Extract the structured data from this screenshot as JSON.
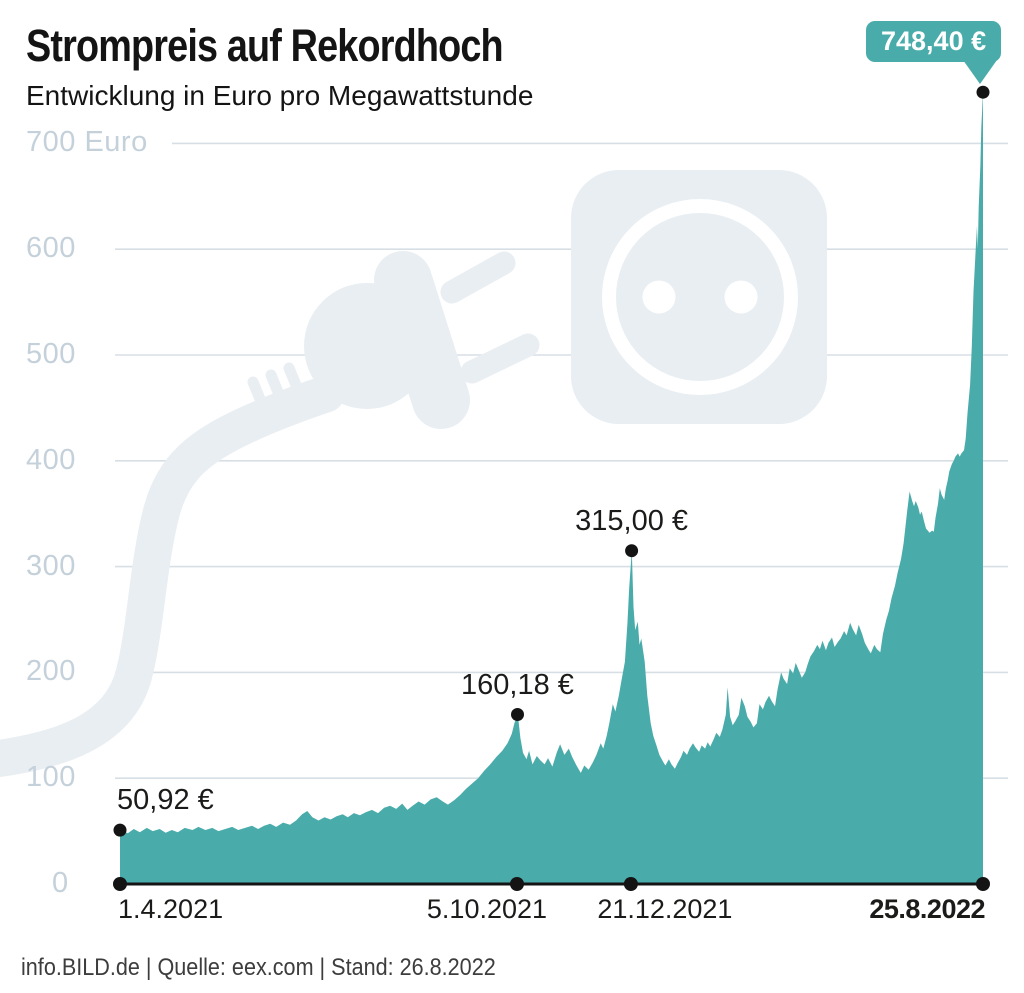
{
  "header": {
    "title": "Strompreis auf Rekordhoch",
    "subtitle": "Entwicklung in Euro pro Megawattstunde"
  },
  "footer": {
    "text": "info.BILD.de | Quelle: eex.com | Stand: 26.8.2022"
  },
  "colors": {
    "accent_teal": "#4aacaa",
    "grid": "#d7dfe5",
    "axis_label": "#c5d1da",
    "text_dark": "#1b1b19",
    "decoration": "#e9eef2",
    "badge_text": "#ffffff"
  },
  "icons": [
    "power-plug-icon",
    "power-socket-icon",
    "power-cable-icon"
  ],
  "chart_data": {
    "type": "area",
    "title": "Strompreis auf Rekordhoch",
    "subtitle": "Entwicklung in Euro pro Megawattstunde",
    "unit": "Euro pro Megawattstunde",
    "ylim": [
      0,
      760
    ],
    "grid": true,
    "y_ticks": [
      {
        "value": 700,
        "label": "700 Euro"
      },
      {
        "value": 600,
        "label": "600"
      },
      {
        "value": 500,
        "label": "500"
      },
      {
        "value": 400,
        "label": "400"
      },
      {
        "value": 300,
        "label": "300"
      },
      {
        "value": 200,
        "label": "200"
      },
      {
        "value": 100,
        "label": "100"
      },
      {
        "value": 0,
        "label": "0"
      }
    ],
    "x_ticks": [
      {
        "t": 0,
        "label": "1.4.2021",
        "bold": false
      },
      {
        "t": 0.46,
        "label": "5.10.2021",
        "bold": false
      },
      {
        "t": 0.592,
        "label": "21.12.2021",
        "bold": false
      },
      {
        "t": 1,
        "label": "25.8.2022",
        "bold": true
      }
    ],
    "annotations": [
      {
        "t": 0,
        "value": 50.92,
        "label": "50,92 €",
        "align": "left"
      },
      {
        "t": 0.4606,
        "value": 160.18,
        "label": "160,18 €",
        "align": "center"
      },
      {
        "t": 0.5928,
        "value": 315.0,
        "label": "315,00 €",
        "align": "center"
      },
      {
        "t": 1,
        "value": 748.4,
        "label": "748,40 €",
        "align": "badge"
      }
    ],
    "series": [
      {
        "name": "Strompreis (Euro pro Megawattstunde)",
        "points": [
          [
            0,
            50.9
          ],
          [
            0.009,
            48
          ],
          [
            0.016,
            52
          ],
          [
            0.023,
            49
          ],
          [
            0.031,
            53
          ],
          [
            0.038,
            50
          ],
          [
            0.046,
            52
          ],
          [
            0.053,
            48.5
          ],
          [
            0.06,
            51
          ],
          [
            0.067,
            49
          ],
          [
            0.075,
            53
          ],
          [
            0.084,
            51
          ],
          [
            0.091,
            54
          ],
          [
            0.099,
            51
          ],
          [
            0.107,
            53
          ],
          [
            0.114,
            50
          ],
          [
            0.122,
            52
          ],
          [
            0.13,
            54
          ],
          [
            0.137,
            51
          ],
          [
            0.145,
            53
          ],
          [
            0.153,
            55
          ],
          [
            0.16,
            52
          ],
          [
            0.167,
            55
          ],
          [
            0.174,
            57
          ],
          [
            0.181,
            54
          ],
          [
            0.189,
            58
          ],
          [
            0.197,
            56
          ],
          [
            0.204,
            60
          ],
          [
            0.211,
            66
          ],
          [
            0.217,
            69
          ],
          [
            0.223,
            63
          ],
          [
            0.23,
            60
          ],
          [
            0.237,
            63
          ],
          [
            0.244,
            61
          ],
          [
            0.251,
            64
          ],
          [
            0.258,
            66
          ],
          [
            0.264,
            63
          ],
          [
            0.271,
            67
          ],
          [
            0.278,
            65
          ],
          [
            0.285,
            68
          ],
          [
            0.292,
            70
          ],
          [
            0.299,
            67
          ],
          [
            0.306,
            72
          ],
          [
            0.313,
            74
          ],
          [
            0.32,
            71
          ],
          [
            0.327,
            76
          ],
          [
            0.333,
            70
          ],
          [
            0.339,
            74
          ],
          [
            0.346,
            78
          ],
          [
            0.353,
            75
          ],
          [
            0.36,
            80
          ],
          [
            0.367,
            82
          ],
          [
            0.374,
            78
          ],
          [
            0.38,
            75
          ],
          [
            0.387,
            79
          ],
          [
            0.394,
            84
          ],
          [
            0.401,
            90
          ],
          [
            0.408,
            95
          ],
          [
            0.415,
            100
          ],
          [
            0.422,
            107
          ],
          [
            0.429,
            113
          ],
          [
            0.436,
            120
          ],
          [
            0.443,
            126
          ],
          [
            0.449,
            133
          ],
          [
            0.454,
            142
          ],
          [
            0.457,
            152
          ],
          [
            0.461,
            160.2
          ],
          [
            0.464,
            138
          ],
          [
            0.467,
            124
          ],
          [
            0.471,
            118
          ],
          [
            0.474,
            126
          ],
          [
            0.478,
            113
          ],
          [
            0.483,
            121
          ],
          [
            0.487,
            117
          ],
          [
            0.492,
            113
          ],
          [
            0.496,
            119
          ],
          [
            0.501,
            111
          ],
          [
            0.506,
            124
          ],
          [
            0.51,
            132
          ],
          [
            0.515,
            122
          ],
          [
            0.52,
            128
          ],
          [
            0.524,
            120
          ],
          [
            0.529,
            112
          ],
          [
            0.534,
            105
          ],
          [
            0.538,
            112
          ],
          [
            0.543,
            108
          ],
          [
            0.548,
            115
          ],
          [
            0.552,
            122
          ],
          [
            0.557,
            133
          ],
          [
            0.56,
            128
          ],
          [
            0.564,
            140
          ],
          [
            0.567,
            152
          ],
          [
            0.571,
            170
          ],
          [
            0.574,
            163
          ],
          [
            0.578,
            178
          ],
          [
            0.581,
            192
          ],
          [
            0.585,
            210
          ],
          [
            0.588,
            246
          ],
          [
            0.59,
            280
          ],
          [
            0.593,
            315
          ],
          [
            0.595,
            262
          ],
          [
            0.597,
            240
          ],
          [
            0.6,
            248
          ],
          [
            0.602,
            226
          ],
          [
            0.604,
            232
          ],
          [
            0.608,
            210
          ],
          [
            0.611,
            178
          ],
          [
            0.615,
            152
          ],
          [
            0.618,
            140
          ],
          [
            0.622,
            130
          ],
          [
            0.625,
            122
          ],
          [
            0.629,
            116
          ],
          [
            0.632,
            112
          ],
          [
            0.636,
            118
          ],
          [
            0.639,
            113
          ],
          [
            0.643,
            109
          ],
          [
            0.646,
            114
          ],
          [
            0.65,
            120
          ],
          [
            0.653,
            126
          ],
          [
            0.657,
            122
          ],
          [
            0.66,
            128
          ],
          [
            0.664,
            133
          ],
          [
            0.667,
            129
          ],
          [
            0.671,
            125
          ],
          [
            0.674,
            131
          ],
          [
            0.678,
            128
          ],
          [
            0.681,
            134
          ],
          [
            0.684,
            130
          ],
          [
            0.688,
            137
          ],
          [
            0.691,
            143
          ],
          [
            0.695,
            139
          ],
          [
            0.698,
            146
          ],
          [
            0.702,
            160
          ],
          [
            0.704,
            186
          ],
          [
            0.707,
            158
          ],
          [
            0.71,
            150
          ],
          [
            0.713,
            154
          ],
          [
            0.717,
            160
          ],
          [
            0.72,
            176
          ],
          [
            0.724,
            168
          ],
          [
            0.727,
            158
          ],
          [
            0.731,
            153
          ],
          [
            0.734,
            148
          ],
          [
            0.738,
            152
          ],
          [
            0.741,
            170
          ],
          [
            0.745,
            165
          ],
          [
            0.748,
            172
          ],
          [
            0.752,
            178
          ],
          [
            0.755,
            173
          ],
          [
            0.759,
            168
          ],
          [
            0.762,
            184
          ],
          [
            0.766,
            200
          ],
          [
            0.769,
            194
          ],
          [
            0.773,
            189
          ],
          [
            0.776,
            204
          ],
          [
            0.78,
            199
          ],
          [
            0.783,
            209
          ],
          [
            0.787,
            201
          ],
          [
            0.79,
            195
          ],
          [
            0.794,
            200
          ],
          [
            0.797,
            208
          ],
          [
            0.8,
            215
          ],
          [
            0.804,
            220
          ],
          [
            0.808,
            226
          ],
          [
            0.811,
            222
          ],
          [
            0.814,
            230
          ],
          [
            0.818,
            221
          ],
          [
            0.821,
            228
          ],
          [
            0.825,
            233
          ],
          [
            0.828,
            224
          ],
          [
            0.832,
            229
          ],
          [
            0.835,
            232
          ],
          [
            0.839,
            239
          ],
          [
            0.842,
            235
          ],
          [
            0.846,
            247
          ],
          [
            0.849,
            241
          ],
          [
            0.853,
            235
          ],
          [
            0.856,
            245
          ],
          [
            0.86,
            236
          ],
          [
            0.863,
            228
          ],
          [
            0.867,
            222
          ],
          [
            0.87,
            218
          ],
          [
            0.874,
            226
          ],
          [
            0.877,
            222
          ],
          [
            0.881,
            219
          ],
          [
            0.884,
            236
          ],
          [
            0.888,
            250
          ],
          [
            0.891,
            258
          ],
          [
            0.894,
            270
          ],
          [
            0.898,
            282
          ],
          [
            0.901,
            294
          ],
          [
            0.905,
            307
          ],
          [
            0.908,
            322
          ],
          [
            0.912,
            352
          ],
          [
            0.915,
            371
          ],
          [
            0.918,
            362
          ],
          [
            0.92,
            357
          ],
          [
            0.922,
            362
          ],
          [
            0.925,
            356
          ],
          [
            0.927,
            349
          ],
          [
            0.929,
            352
          ],
          [
            0.932,
            342
          ],
          [
            0.934,
            336
          ],
          [
            0.936,
            334
          ],
          [
            0.938,
            332
          ],
          [
            0.941,
            334
          ],
          [
            0.943,
            333
          ],
          [
            0.945,
            346
          ],
          [
            0.948,
            360
          ],
          [
            0.95,
            374
          ],
          [
            0.952,
            368
          ],
          [
            0.955,
            363
          ],
          [
            0.957,
            374
          ],
          [
            0.959,
            381
          ],
          [
            0.961,
            390
          ],
          [
            0.964,
            397
          ],
          [
            0.966,
            400
          ],
          [
            0.968,
            404
          ],
          [
            0.971,
            407
          ],
          [
            0.973,
            404
          ],
          [
            0.975,
            407
          ],
          [
            0.978,
            410
          ],
          [
            0.98,
            421
          ],
          [
            0.982,
            445
          ],
          [
            0.985,
            472
          ],
          [
            0.987,
            508
          ],
          [
            0.989,
            560
          ],
          [
            0.992,
            607
          ],
          [
            0.993,
            622
          ],
          [
            0.994,
            600
          ],
          [
            0.995,
            640
          ],
          [
            0.997,
            680
          ],
          [
            0.998,
            715
          ],
          [
            1,
            748.4
          ]
        ]
      }
    ]
  }
}
